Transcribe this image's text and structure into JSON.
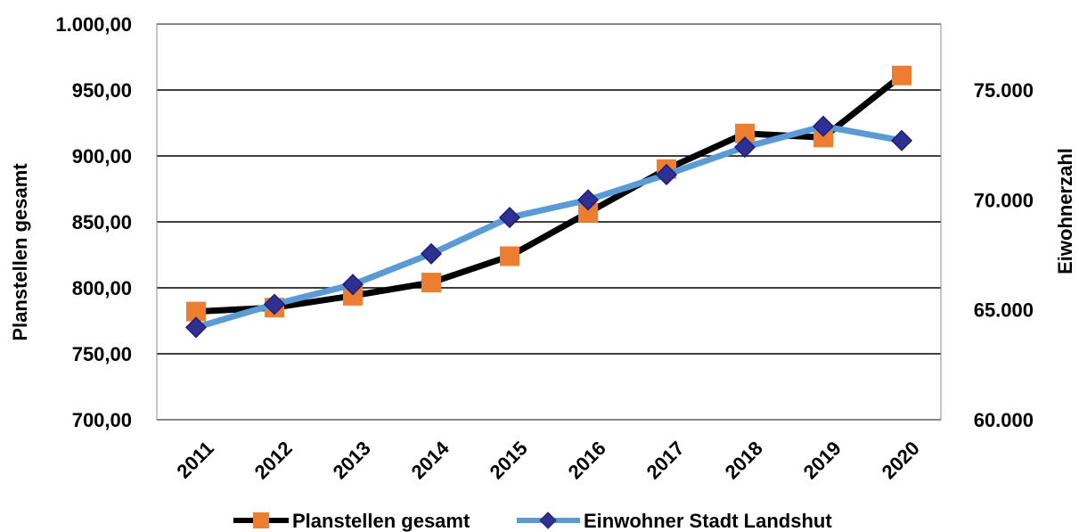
{
  "chart_data": {
    "type": "line",
    "title": "",
    "categories": [
      "2011",
      "2012",
      "2013",
      "2014",
      "2015",
      "2016",
      "2017",
      "2018",
      "2019",
      "2020"
    ],
    "y_left": {
      "label": "Planstellen gesamt",
      "ylim": [
        700,
        1000
      ],
      "ticks": [
        700,
        750,
        800,
        850,
        900,
        950,
        1000
      ],
      "tick_labels": [
        "700,00",
        "750,00",
        "800,00",
        "850,00",
        "900,00",
        "950,00",
        "1.000,00"
      ]
    },
    "y_right": {
      "label": "Eiwohnerzahl",
      "ylim": [
        60000,
        78000
      ],
      "ticks": [
        60000,
        65000,
        70000,
        75000
      ],
      "tick_labels": [
        "60.000",
        "65.000",
        "70.000",
        "75.000"
      ]
    },
    "grid": true,
    "legend_position": "bottom",
    "series": [
      {
        "name": "Planstellen gesamt",
        "axis": "left",
        "line_color": "#000000",
        "marker": "square",
        "marker_color": "#ED7D31",
        "values": [
          782,
          785,
          794,
          804,
          824,
          857,
          890,
          917,
          914,
          961
        ]
      },
      {
        "name": "Einwohner Stadt Landshut",
        "axis": "right",
        "line_color": "#5B9BD5",
        "marker": "diamond",
        "marker_color": "#2E3192",
        "values": [
          64200,
          65250,
          66150,
          67550,
          69200,
          70000,
          71150,
          72400,
          73350,
          72700
        ]
      }
    ]
  }
}
